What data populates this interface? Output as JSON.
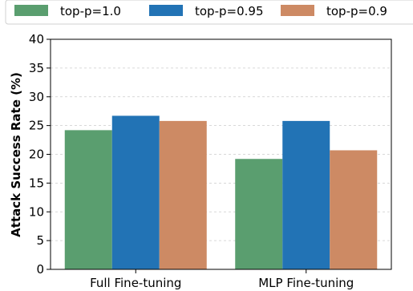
{
  "chart_data": {
    "type": "bar",
    "categories": [
      "Full Fine-tuning",
      "MLP Fine-tuning"
    ],
    "series": [
      {
        "name": "top-p=1.0",
        "values": [
          24.2,
          19.2
        ],
        "color": "#5a9e6f"
      },
      {
        "name": "top-p=0.95",
        "values": [
          26.7,
          25.8
        ],
        "color": "#2273b5"
      },
      {
        "name": "top-p=0.9",
        "values": [
          25.8,
          20.7
        ],
        "color": "#cd8a64"
      }
    ],
    "xlabel": "",
    "ylabel": "Attack Success Rate (%)",
    "ylim": [
      0,
      40
    ],
    "yticks": [
      "0",
      "5",
      "10",
      "15",
      "20",
      "25",
      "30",
      "35",
      "40"
    ],
    "grid": "y-dashed",
    "legend_position": "top"
  }
}
